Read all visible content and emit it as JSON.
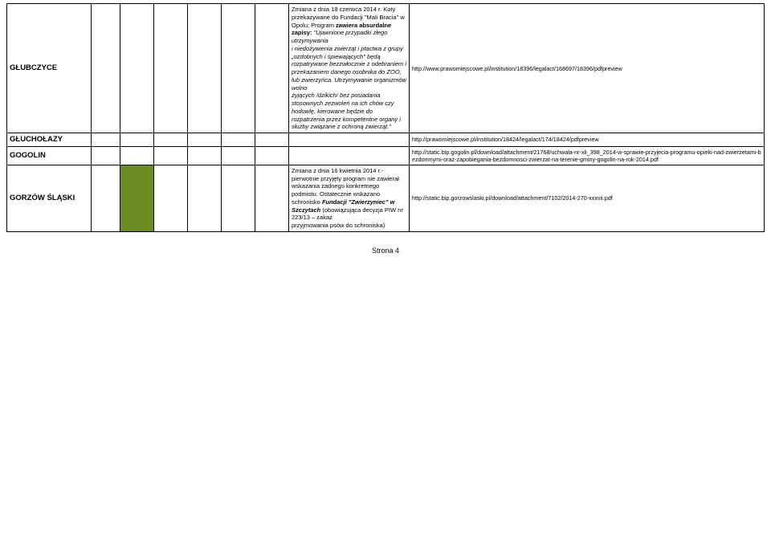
{
  "rows": [
    {
      "name": "GŁUBCZYCE",
      "desc_html": "<span class='nbq'>Zmiana z dnia 18 czerwca 2014 r. Koty przekazywane do Fundacji \"Mali Bracia\" w Opolu; Program <b>zawiera absurdalne zapisy:</b></span> \"Ujawnione przypadki złego utrzymywania<br>i niedożywienia zwierząt i ptactwa z grupy „ozdobnych i śpiewających\" będą rozpatrywane bezzwłocznie z odebraniem i przekazaniem danego osobnika do ZOO, lub zwierzyńca. Utrzymywanie organizmów wolno<br>żyjących /dzikich/ bez posiadania stosownych zezwoleń na ich chów czy hodowlę, kierowane będzie do<br>rozpatrzenia przez kompetentne organy i służby związane z ochroną zwierząt.\"",
      "link": "http://www.prawomiejscowe.pl/institution/18396/legalact/168697/18396/pdfpreview",
      "col3_green": false
    },
    {
      "name": "GŁUCHOŁAZY",
      "desc_html": "",
      "link": "http://prawomiejscowe.pl/institution/18424/legalact/174/18424/pdfpreview",
      "col3_green": false
    },
    {
      "name": "GOGOLIN",
      "desc_html": "",
      "link": "http://static.bip.gogolin.pl/download/attachment/21768/uchwala-nr-xli_398_2014-w-sprawie-przyjecia-programu-opieki-nad-zwierzetami-bezdomnymi-oraz-zapobiegania-bezdomnosci-zwierzat-na-terenie-gminy-gogolin-na-rok-2014.pdf",
      "col3_green": false
    },
    {
      "name": "GORZÓW ŚLĄSKI",
      "desc_html": "<span class='nbq'>Zmiana z dnia 16 kwietnia 2014 r.- pierwotnie przyjęty program nie zawierał wskazania żadnego konkretnego podmiotu. Ostatecznie wskazano schronisko </span><span class='italic-bold'>Fundacji \"Zwierzyniec\" w Szczytach</span><span class='nbq'> (obowiązująca decyzja PIW nr 223/13 – zakaz<br>przyjmowania psów do schroniska)</span>",
      "link": "http://static.bip.gorzowslaski.pl/download/attachment/7102/2014-270-xxxvii.pdf",
      "col3_green": true
    }
  ],
  "footer": "Strona 4"
}
